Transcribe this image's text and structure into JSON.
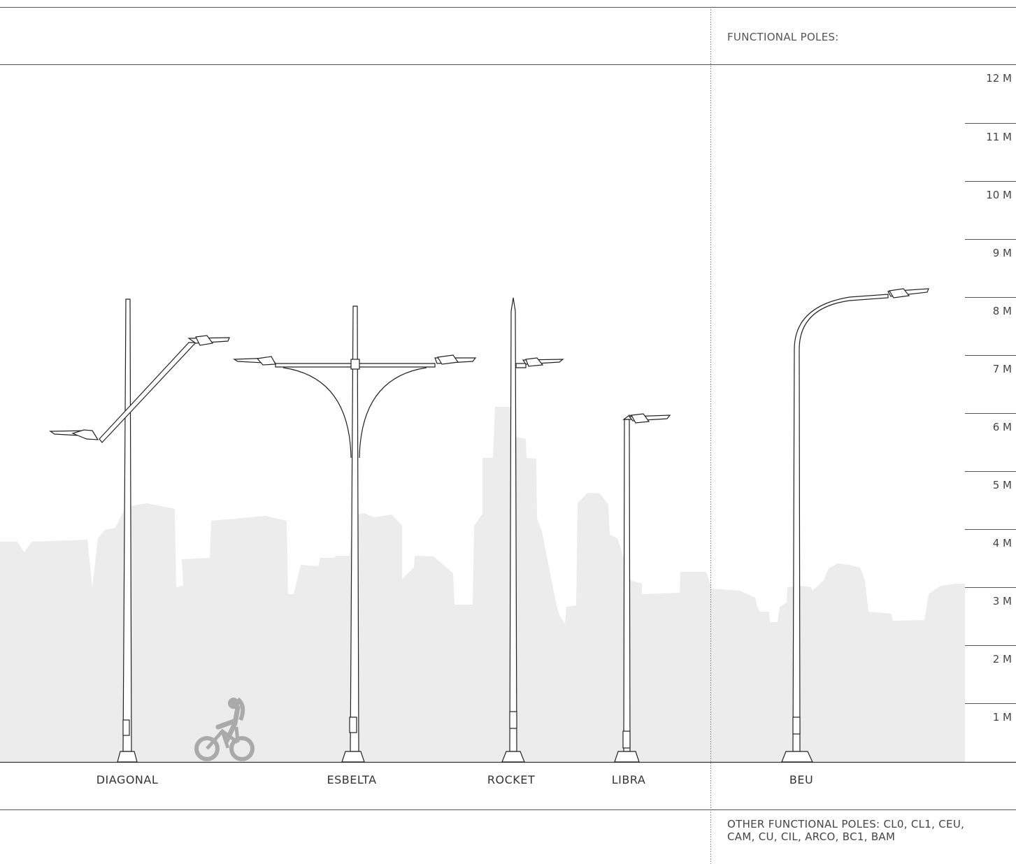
{
  "header": {
    "label": "FUNCTIONAL POLES:"
  },
  "scale": {
    "unit": "M",
    "labels": [
      "12 M",
      "11 M",
      "10 M",
      "9 M",
      "8 M",
      "7 M",
      "6 M",
      "5 M",
      "4 M",
      "3 M",
      "2 M",
      "1 M"
    ]
  },
  "poles": [
    {
      "name": "DIAGONAL",
      "arms": 2,
      "arm_style": "diagonal"
    },
    {
      "name": "ESBELTA",
      "arms": 2,
      "arm_style": "double-curved"
    },
    {
      "name": "ROCKET",
      "arms": 1,
      "arm_style": "side-bracket"
    },
    {
      "name": "LIBRA",
      "arms": 1,
      "arm_style": "top-bend"
    },
    {
      "name": "BEU",
      "arms": 1,
      "arm_style": "swan-neck"
    }
  ],
  "footer": {
    "note": "OTHER FUNCTIONAL POLES: CL0, CL1, CEU, CAM, CU, CIL, ARCO, BC1, BAM"
  },
  "colors": {
    "line": "#222222",
    "skyline": "#ececec",
    "rule": "#555555",
    "cyclist": "#aaaaaa"
  }
}
